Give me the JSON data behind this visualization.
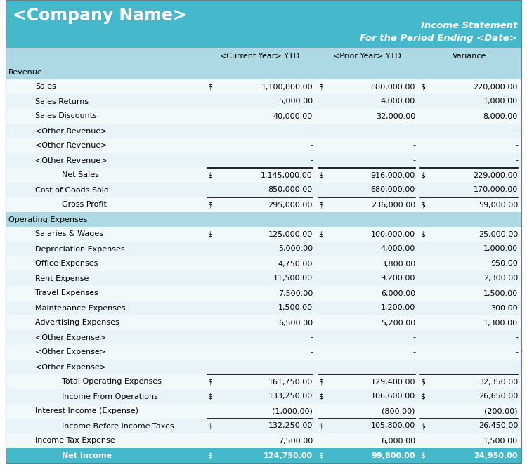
{
  "company_name": "<Company Name>",
  "title_line1": "Income Statement",
  "title_line2": "For the Period Ending <Date>",
  "col_headers": [
    "<Current Year> YTD",
    "<Prior Year> YTD",
    "Variance"
  ],
  "header_bg": "#45B8CC",
  "subheader_bg": "#ACD9E4",
  "net_income_bg": "#45B8CC",
  "rows": [
    {
      "label": "Revenue",
      "type": "section_header",
      "indent": 0,
      "cur": "",
      "pri": "",
      "var": "",
      "dollar_cur": false,
      "dollar_pri": false,
      "dollar_var": false,
      "border_top": false
    },
    {
      "label": "Sales",
      "type": "data",
      "indent": 1,
      "cur": "1,100,000.00",
      "pri": "880,000.00",
      "var": "220,000.00",
      "dollar_cur": true,
      "dollar_pri": true,
      "dollar_var": true,
      "border_top": false
    },
    {
      "label": "Sales Returns",
      "type": "data",
      "indent": 1,
      "cur": "5,000.00",
      "pri": "4,000.00",
      "var": "1,000.00",
      "dollar_cur": false,
      "dollar_pri": false,
      "dollar_var": false,
      "border_top": false
    },
    {
      "label": "Sales Discounts",
      "type": "data",
      "indent": 1,
      "cur": "40,000.00",
      "pri": "32,000.00",
      "var": "8,000.00",
      "dollar_cur": false,
      "dollar_pri": false,
      "dollar_var": false,
      "border_top": false
    },
    {
      "label": "<Other Revenue>",
      "type": "data",
      "indent": 1,
      "cur": "-",
      "pri": "-",
      "var": "-",
      "dollar_cur": false,
      "dollar_pri": false,
      "dollar_var": false,
      "border_top": false
    },
    {
      "label": "<Other Revenue>",
      "type": "data",
      "indent": 1,
      "cur": "-",
      "pri": "-",
      "var": "-",
      "dollar_cur": false,
      "dollar_pri": false,
      "dollar_var": false,
      "border_top": false
    },
    {
      "label": "<Other Revenue>",
      "type": "data",
      "indent": 1,
      "cur": "-",
      "pri": "-",
      "var": "-",
      "dollar_cur": false,
      "dollar_pri": false,
      "dollar_var": false,
      "border_top": false
    },
    {
      "label": "Net Sales",
      "type": "subtotal",
      "indent": 2,
      "cur": "1,145,000.00",
      "pri": "916,000.00",
      "var": "229,000.00",
      "dollar_cur": true,
      "dollar_pri": true,
      "dollar_var": true,
      "border_top": true
    },
    {
      "label": "Cost of Goods Sold",
      "type": "data",
      "indent": 1,
      "cur": "850,000.00",
      "pri": "680,000.00",
      "var": "170,000.00",
      "dollar_cur": false,
      "dollar_pri": false,
      "dollar_var": false,
      "border_top": false
    },
    {
      "label": "Gross Profit",
      "type": "subtotal",
      "indent": 2,
      "cur": "295,000.00",
      "pri": "236,000.00",
      "var": "59,000.00",
      "dollar_cur": true,
      "dollar_pri": true,
      "dollar_var": true,
      "border_top": true
    },
    {
      "label": "Operating Expenses",
      "type": "section_header",
      "indent": 0,
      "cur": "",
      "pri": "",
      "var": "",
      "dollar_cur": false,
      "dollar_pri": false,
      "dollar_var": false,
      "border_top": false
    },
    {
      "label": "Salaries & Wages",
      "type": "data",
      "indent": 1,
      "cur": "125,000.00",
      "pri": "100,000.00",
      "var": "25,000.00",
      "dollar_cur": true,
      "dollar_pri": true,
      "dollar_var": true,
      "border_top": false
    },
    {
      "label": "Depreciation Expenses",
      "type": "data",
      "indent": 1,
      "cur": "5,000.00",
      "pri": "4,000.00",
      "var": "1,000.00",
      "dollar_cur": false,
      "dollar_pri": false,
      "dollar_var": false,
      "border_top": false
    },
    {
      "label": "Office Expenses",
      "type": "data",
      "indent": 1,
      "cur": "4,750.00",
      "pri": "3,800.00",
      "var": "950.00",
      "dollar_cur": false,
      "dollar_pri": false,
      "dollar_var": false,
      "border_top": false
    },
    {
      "label": "Rent Expense",
      "type": "data",
      "indent": 1,
      "cur": "11,500.00",
      "pri": "9,200.00",
      "var": "2,300.00",
      "dollar_cur": false,
      "dollar_pri": false,
      "dollar_var": false,
      "border_top": false
    },
    {
      "label": "Travel Expenses",
      "type": "data",
      "indent": 1,
      "cur": "7,500.00",
      "pri": "6,000.00",
      "var": "1,500.00",
      "dollar_cur": false,
      "dollar_pri": false,
      "dollar_var": false,
      "border_top": false
    },
    {
      "label": "Maintenance Expenses",
      "type": "data",
      "indent": 1,
      "cur": "1,500.00",
      "pri": "1,200.00",
      "var": "300.00",
      "dollar_cur": false,
      "dollar_pri": false,
      "dollar_var": false,
      "border_top": false
    },
    {
      "label": "Advertising Expenses",
      "type": "data",
      "indent": 1,
      "cur": "6,500.00",
      "pri": "5,200.00",
      "var": "1,300.00",
      "dollar_cur": false,
      "dollar_pri": false,
      "dollar_var": false,
      "border_top": false
    },
    {
      "label": "<Other Expense>",
      "type": "data",
      "indent": 1,
      "cur": "-",
      "pri": "-",
      "var": "-",
      "dollar_cur": false,
      "dollar_pri": false,
      "dollar_var": false,
      "border_top": false
    },
    {
      "label": "<Other Expense>",
      "type": "data",
      "indent": 1,
      "cur": "-",
      "pri": "-",
      "var": "-",
      "dollar_cur": false,
      "dollar_pri": false,
      "dollar_var": false,
      "border_top": false
    },
    {
      "label": "<Other Expense>",
      "type": "data",
      "indent": 1,
      "cur": "-",
      "pri": "-",
      "var": "-",
      "dollar_cur": false,
      "dollar_pri": false,
      "dollar_var": false,
      "border_top": false
    },
    {
      "label": "Total Operating Expenses",
      "type": "subtotal",
      "indent": 2,
      "cur": "161,750.00",
      "pri": "129,400.00",
      "var": "32,350.00",
      "dollar_cur": true,
      "dollar_pri": true,
      "dollar_var": true,
      "border_top": true
    },
    {
      "label": "Income From Operations",
      "type": "subtotal",
      "indent": 2,
      "cur": "133,250.00",
      "pri": "106,600.00",
      "var": "26,650.00",
      "dollar_cur": true,
      "dollar_pri": true,
      "dollar_var": true,
      "border_top": false
    },
    {
      "label": "Interest Income (Expense)",
      "type": "data",
      "indent": 1,
      "cur": "(1,000.00)",
      "pri": "(800.00)",
      "var": "(200.00)",
      "dollar_cur": false,
      "dollar_pri": false,
      "dollar_var": false,
      "border_top": false
    },
    {
      "label": "Income Before Income Taxes",
      "type": "subtotal",
      "indent": 2,
      "cur": "132,250.00",
      "pri": "105,800.00",
      "var": "26,450.00",
      "dollar_cur": true,
      "dollar_pri": true,
      "dollar_var": true,
      "border_top": true
    },
    {
      "label": "Income Tax Expense",
      "type": "data",
      "indent": 1,
      "cur": "7,500.00",
      "pri": "6,000.00",
      "var": "1,500.00",
      "dollar_cur": false,
      "dollar_pri": false,
      "dollar_var": false,
      "border_top": false
    },
    {
      "label": "Net Income",
      "type": "net_income",
      "indent": 2,
      "cur": "124,750.00",
      "pri": "99,800.00",
      "var": "24,950.00",
      "dollar_cur": true,
      "dollar_pri": true,
      "dollar_var": true,
      "border_top": false
    }
  ]
}
